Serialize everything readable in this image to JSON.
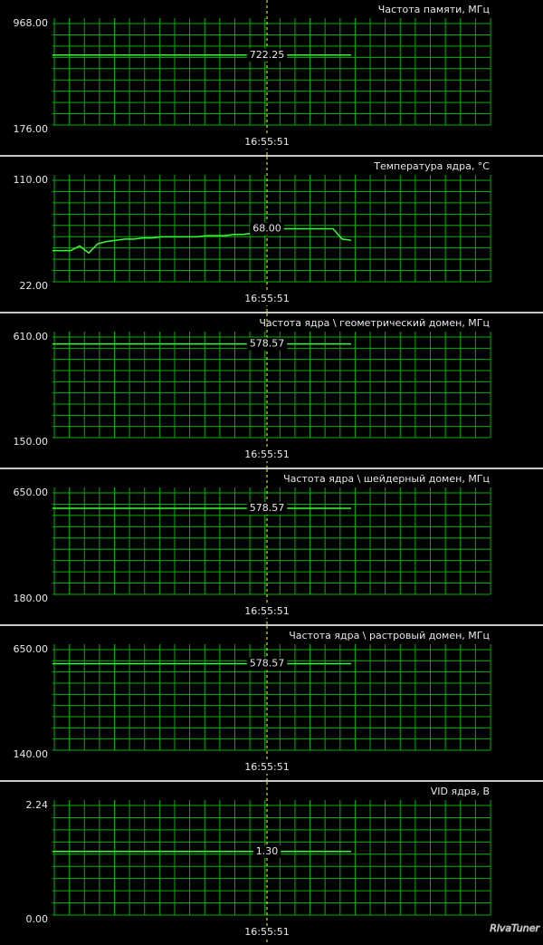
{
  "chart_data": [
    {
      "type": "line",
      "title": "Частота памяти, МГц",
      "ylim": [
        176,
        968
      ],
      "yticks": [
        {
          "value": 176,
          "label": "176.00"
        },
        {
          "value": 968,
          "label": "968.00"
        }
      ],
      "series": [
        {
          "color": "#33ff33",
          "values": [
            722.25,
            722.25
          ]
        }
      ],
      "current": {
        "value": 722.25,
        "label": "722.25"
      },
      "cursor_label": "16:55:51",
      "grid": true
    },
    {
      "type": "line",
      "title": "Температура ядра, °C",
      "ylim": [
        22,
        110
      ],
      "yticks": [
        {
          "value": 22,
          "label": "22.00"
        },
        {
          "value": 110,
          "label": "110.00"
        }
      ],
      "series": [
        {
          "color": "#33ff33",
          "values": [
            49,
            49,
            49,
            53,
            47,
            55,
            57,
            58,
            59,
            59,
            60,
            60,
            61,
            61,
            61,
            61,
            61,
            62,
            62,
            62,
            63,
            63,
            64,
            68,
            67,
            68,
            68,
            68,
            68,
            68,
            68,
            68,
            59,
            58
          ]
        }
      ],
      "current": {
        "value": 68,
        "label": "68.00"
      },
      "cursor_label": "16:55:51",
      "grid": true
    },
    {
      "type": "line",
      "title": "Частота ядра \\ геометрический домен, МГц",
      "ylim": [
        150,
        610
      ],
      "yticks": [
        {
          "value": 150,
          "label": "150.00"
        },
        {
          "value": 610,
          "label": "610.00"
        }
      ],
      "series": [
        {
          "color": "#33ff33",
          "values": [
            578.57,
            578.57
          ]
        }
      ],
      "current": {
        "value": 578.57,
        "label": "578.57"
      },
      "cursor_label": "16:55:51",
      "grid": true
    },
    {
      "type": "line",
      "title": "Частота ядра \\ шейдерный домен, МГц",
      "ylim": [
        180,
        650
      ],
      "yticks": [
        {
          "value": 180,
          "label": "180.00"
        },
        {
          "value": 650,
          "label": "650.00"
        }
      ],
      "series": [
        {
          "color": "#33ff33",
          "values": [
            578.57,
            578.57
          ]
        }
      ],
      "current": {
        "value": 578.57,
        "label": "578.57"
      },
      "cursor_label": "16:55:51",
      "grid": true
    },
    {
      "type": "line",
      "title": "Частота ядра \\ растровый домен, МГц",
      "ylim": [
        140,
        650
      ],
      "yticks": [
        {
          "value": 140,
          "label": "140.00"
        },
        {
          "value": 650,
          "label": "650.00"
        }
      ],
      "series": [
        {
          "color": "#33ff33",
          "values": [
            578.57,
            578.57
          ]
        }
      ],
      "current": {
        "value": 578.57,
        "label": "578.57"
      },
      "cursor_label": "16:55:51",
      "grid": true
    },
    {
      "type": "line",
      "title": "VID ядра, В",
      "ylim": [
        0,
        2.24
      ],
      "yticks": [
        {
          "value": 0,
          "label": "0.00"
        },
        {
          "value": 2.24,
          "label": "2.24"
        }
      ],
      "series": [
        {
          "color": "#33ff33",
          "values": [
            1.3,
            1.3
          ]
        }
      ],
      "current": {
        "value": 1.3,
        "label": "1.30"
      },
      "cursor_label": "16:55:51",
      "grid": true
    }
  ],
  "logo": "RivaTuner"
}
